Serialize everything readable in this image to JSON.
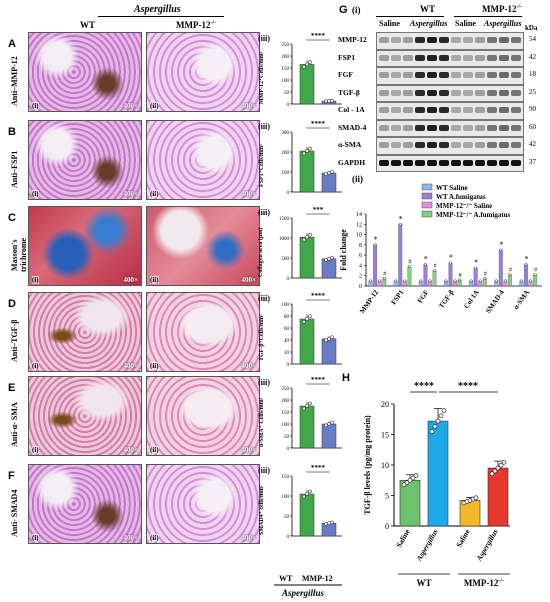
{
  "left": {
    "header": "Aspergillus",
    "col_wt": "WT",
    "col_ko": "MMP-12",
    "ko_sup": "-/-",
    "mag": "400×",
    "sub_i": "(i)",
    "sub_ii": "(ii)",
    "sub_iii": "(iii)",
    "rows": [
      {
        "letter": "A",
        "label": "Anti–MMP-12",
        "ylabel": "MMP-12⁺Cells/mm²",
        "sig": "****",
        "wt": 165,
        "ko": 12,
        "ymax": 250,
        "ticks": [
          0,
          50,
          100,
          150,
          200,
          250
        ],
        "stain": "ihc"
      },
      {
        "letter": "B",
        "label": "Anti–FSP1",
        "ylabel": "FSP1⁺Cells/mm²",
        "sig": "****",
        "wt": 205,
        "ko": 95,
        "ymax": 300,
        "ticks": [
          0,
          100,
          200,
          300
        ],
        "stain": "ihc"
      },
      {
        "letter": "C",
        "label": "Masson's trichrome",
        "ylabel": "Collagen area (µm)",
        "sig": "***",
        "wt": 1020,
        "ko": 480,
        "ymax": 1500,
        "ticks": [
          0,
          500,
          1000,
          1500
        ],
        "stain": "masson"
      },
      {
        "letter": "D",
        "label": "Anti–TGF-β",
        "ylabel": "TGF-β⁺Cells/mm²",
        "sig": "****",
        "wt": 75,
        "ko": 42,
        "ymax": 100,
        "ticks": [
          0,
          20,
          40,
          60,
          80,
          100
        ],
        "stain": "ihc"
      },
      {
        "letter": "E",
        "label": "Anti-α- SMA",
        "ylabel": "α-SMA⁺ Cells/mm²",
        "sig": "****",
        "wt": 175,
        "ko": 100,
        "ymax": 250,
        "ticks": [
          0,
          50,
          100,
          150,
          200,
          250
        ],
        "stain": "ihc"
      },
      {
        "letter": "F",
        "label": "Anti- SMAD4",
        "ylabel": "SMAD4⁺ cells/mm²",
        "sig": "****",
        "wt": 105,
        "ko": 32,
        "ymax": 150,
        "ticks": [
          0,
          50,
          100,
          150
        ],
        "stain": "ihc"
      }
    ],
    "x_wt": "WT",
    "x_ko": "MMP-12",
    "footer": "Aspergillus"
  },
  "blot": {
    "panel": "G",
    "sub": "(i)",
    "wt": "WT",
    "ko": "MMP-12",
    "saline": "Saline",
    "asp": "Aspergillus",
    "kda": "kDa",
    "rows": [
      {
        "name": "MMP-12",
        "kda": "54"
      },
      {
        "name": "FSP1",
        "kda": "42"
      },
      {
        "name": "FGF",
        "kda": "18"
      },
      {
        "name": "TGF-β",
        "kda": "25"
      },
      {
        "name": "Col - 1A",
        "kda": "90"
      },
      {
        "name": "SMAD-4",
        "kda": "60"
      },
      {
        "name": "α-SMA",
        "kda": "42"
      },
      {
        "name": "GAPDH",
        "kda": "37"
      }
    ]
  },
  "fold": {
    "sub": "(ii)",
    "ylabel": "Fold change",
    "ticks": [
      0,
      2,
      4,
      6,
      8,
      10,
      12,
      14
    ],
    "legend": [
      "WT Saline",
      "WT A.fumigatus",
      "MMP-12⁻/⁻ Saline",
      "MMP-12⁻/⁻ A.fumigatus"
    ],
    "colors": [
      "#8ab4f8",
      "#9b7fd4",
      "#e58be6",
      "#7fd07f"
    ],
    "categories": [
      "MMP-12",
      "FSP1",
      "FGF",
      "TGF-β",
      "Col 1A",
      "SMAD-4",
      "α-SMA"
    ],
    "series": [
      [
        1,
        1,
        1,
        1,
        1,
        1,
        1
      ],
      [
        8,
        12,
        4.2,
        4.5,
        3.5,
        7,
        4.2
      ],
      [
        1,
        1,
        1,
        1,
        1,
        1,
        1
      ],
      [
        1.5,
        3.8,
        3,
        1.2,
        1.5,
        2.2,
        2.2
      ]
    ],
    "star": "*",
    "hash": "#"
  },
  "h": {
    "panel": "H",
    "ylabel": "TGF-β levels (pg/mg protein)",
    "sig": "****",
    "ticks": [
      0,
      5,
      10,
      15,
      20
    ],
    "cats": [
      "Saline",
      "Aspergillus",
      "Saline",
      "Aspergillus"
    ],
    "values": [
      7.5,
      17.2,
      4.2,
      9.5
    ],
    "colors": [
      "#6cc36c",
      "#1ea8e8",
      "#f3b829",
      "#e8372c"
    ],
    "group_wt": "WT",
    "group_ko": "MMP-12",
    "ko_sup": "-/-"
  },
  "chart_data": [
    {
      "type": "bar",
      "title": "",
      "categories": [
        "WT",
        "MMP-12 -/-"
      ],
      "values": [
        165,
        12
      ],
      "ylabel": "MMP-12⁺Cells/mm²",
      "ylim": [
        0,
        250
      ]
    },
    {
      "type": "bar",
      "title": "",
      "categories": [
        "WT",
        "MMP-12 -/-"
      ],
      "values": [
        205,
        95
      ],
      "ylabel": "FSP1⁺Cells/mm²",
      "ylim": [
        0,
        300
      ]
    },
    {
      "type": "bar",
      "title": "",
      "categories": [
        "WT",
        "MMP-12 -/-"
      ],
      "values": [
        1020,
        480
      ],
      "ylabel": "Collagen area (µm)",
      "ylim": [
        0,
        1500
      ]
    },
    {
      "type": "bar",
      "title": "",
      "categories": [
        "WT",
        "MMP-12 -/-"
      ],
      "values": [
        75,
        42
      ],
      "ylabel": "TGF-β⁺Cells/mm²",
      "ylim": [
        0,
        100
      ]
    },
    {
      "type": "bar",
      "title": "",
      "categories": [
        "WT",
        "MMP-12 -/-"
      ],
      "values": [
        175,
        100
      ],
      "ylabel": "α-SMA⁺ Cells/mm²",
      "ylim": [
        0,
        250
      ]
    },
    {
      "type": "bar",
      "title": "",
      "categories": [
        "WT",
        "MMP-12 -/-"
      ],
      "values": [
        105,
        32
      ],
      "ylabel": "SMAD4⁺ cells/mm²",
      "ylim": [
        0,
        150
      ]
    },
    {
      "type": "bar",
      "title": "",
      "categories": [
        "MMP-12",
        "FSP1",
        "FGF",
        "TGF-β",
        "Col 1A",
        "SMAD-4",
        "α-SMA"
      ],
      "series": [
        {
          "name": "WT Saline",
          "values": [
            1,
            1,
            1,
            1,
            1,
            1,
            1
          ]
        },
        {
          "name": "WT A.fumigatus",
          "values": [
            8,
            12,
            4.2,
            4.5,
            3.5,
            7,
            4.2
          ]
        },
        {
          "name": "MMP-12⁻/⁻ Saline",
          "values": [
            1,
            1,
            1,
            1,
            1,
            1,
            1
          ]
        },
        {
          "name": "MMP-12⁻/⁻ A.fumigatus",
          "values": [
            1.5,
            3.8,
            3,
            1.2,
            1.5,
            2.2,
            2.2
          ]
        }
      ],
      "ylabel": "Fold change",
      "ylim": [
        0,
        14
      ]
    },
    {
      "type": "bar",
      "title": "",
      "categories": [
        "Saline",
        "Aspergillus",
        "Saline",
        "Aspergillus"
      ],
      "values": [
        7.5,
        17.2,
        4.2,
        9.5
      ],
      "ylabel": "TGF-β levels (pg/mg protein)",
      "ylim": [
        0,
        20
      ]
    }
  ]
}
